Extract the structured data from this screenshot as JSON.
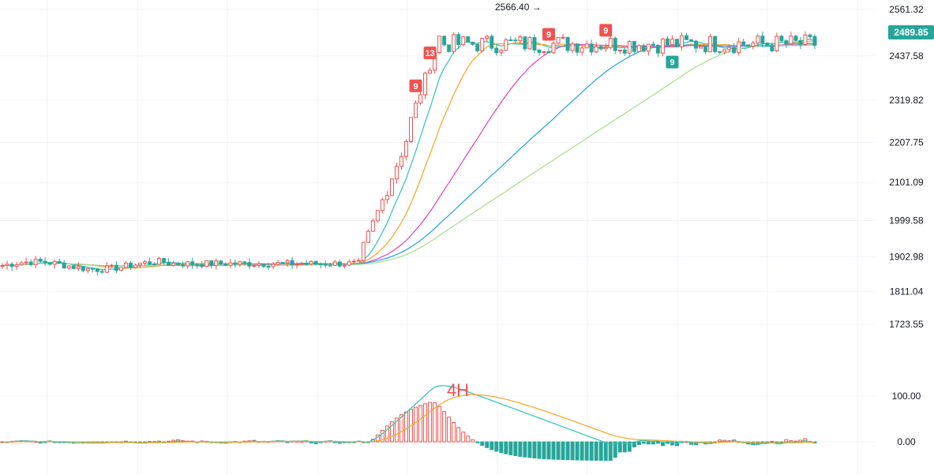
{
  "chart_data": [
    {
      "type": "candlestick",
      "panel": "price",
      "y_ticks": [
        2561.32,
        2437.58,
        2319.82,
        2207.75,
        2101.09,
        1999.58,
        1902.98,
        1811.04,
        1723.55
      ],
      "ylim": [
        1680,
        2585
      ],
      "last_price": "2489.85",
      "high_annotation": "2566.40 →",
      "up_color": "#26a69a",
      "down_color": "#ef5350",
      "markers": [
        {
          "label": "9",
          "color": "#ef5350",
          "at": 0.51
        },
        {
          "label": "13",
          "color": "#ef5350",
          "at": 0.525
        },
        {
          "label": "9",
          "color": "#ef5350",
          "at": 0.67
        },
        {
          "label": "9",
          "color": "#ef5350",
          "at": 0.745
        },
        {
          "label": "9",
          "color": "#26a69a",
          "at": 0.825
        }
      ],
      "moving_averages": [
        {
          "color": "#2ec4b6"
        },
        {
          "color": "#f5a623"
        },
        {
          "color": "#e040c0"
        },
        {
          "color": "#1fa2e0"
        },
        {
          "color": "#a8dc8a"
        }
      ]
    },
    {
      "type": "macd",
      "panel": "indicator",
      "y_ticks": [
        "100.00",
        "0.00"
      ],
      "annotation": "4H",
      "annotation_color": "#ef5350",
      "dif_color": "#2ec4b6",
      "dea_color": "#f5a623"
    }
  ]
}
